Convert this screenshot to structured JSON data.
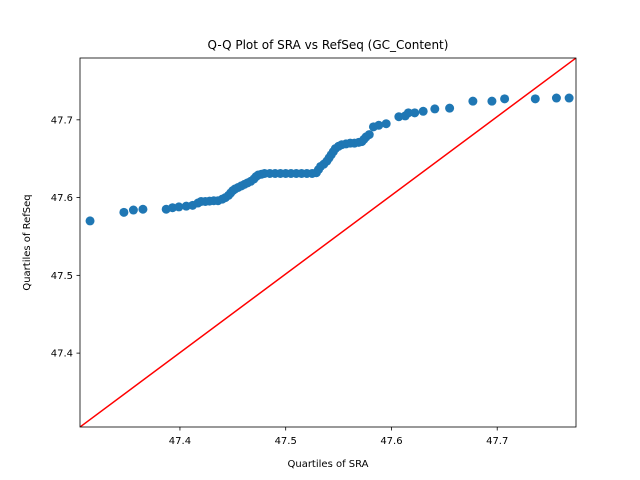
{
  "chart_data": {
    "type": "scatter",
    "title": "Q-Q Plot of SRA vs RefSeq (GC_Content)",
    "xlabel": "Quartiles of SRA",
    "ylabel": "Quartiles of RefSeq",
    "xlim": [
      47.3055,
      47.7745
    ],
    "ylim": [
      47.305,
      47.7795
    ],
    "xticks": [
      47.4,
      47.5,
      47.6,
      47.7
    ],
    "yticks": [
      47.4,
      47.5,
      47.6,
      47.7
    ],
    "xtick_labels": [
      "47.4",
      "47.5",
      "47.6",
      "47.7"
    ],
    "ytick_labels": [
      "47.4",
      "47.5",
      "47.6",
      "47.7"
    ],
    "grid": false,
    "marker_color": "#1f77b4",
    "reference_line": {
      "color": "#ff0000",
      "from": [
        47.3055,
        47.305
      ],
      "to": [
        47.7745,
        47.7795
      ]
    },
    "points": [
      [
        47.315,
        47.57
      ],
      [
        47.347,
        47.581
      ],
      [
        47.356,
        47.584
      ],
      [
        47.365,
        47.585
      ],
      [
        47.387,
        47.585
      ],
      [
        47.393,
        47.587
      ],
      [
        47.399,
        47.588
      ],
      [
        47.406,
        47.589
      ],
      [
        47.412,
        47.59
      ],
      [
        47.417,
        47.593
      ],
      [
        47.42,
        47.595
      ],
      [
        47.424,
        47.595
      ],
      [
        47.428,
        47.5955
      ],
      [
        47.432,
        47.596
      ],
      [
        47.436,
        47.596
      ],
      [
        47.44,
        47.598
      ],
      [
        47.443,
        47.6
      ],
      [
        47.446,
        47.603
      ],
      [
        47.448,
        47.606
      ],
      [
        47.45,
        47.609
      ],
      [
        47.452,
        47.611
      ],
      [
        47.455,
        47.613
      ],
      [
        47.458,
        47.615
      ],
      [
        47.461,
        47.617
      ],
      [
        47.464,
        47.619
      ],
      [
        47.467,
        47.621
      ],
      [
        47.47,
        47.624
      ],
      [
        47.472,
        47.627
      ],
      [
        47.474,
        47.629
      ],
      [
        47.477,
        47.63
      ],
      [
        47.48,
        47.631
      ],
      [
        47.485,
        47.631
      ],
      [
        47.49,
        47.631
      ],
      [
        47.495,
        47.631
      ],
      [
        47.5,
        47.631
      ],
      [
        47.505,
        47.631
      ],
      [
        47.51,
        47.631
      ],
      [
        47.515,
        47.631
      ],
      [
        47.52,
        47.631
      ],
      [
        47.525,
        47.631
      ],
      [
        47.529,
        47.632
      ],
      [
        47.531,
        47.636
      ],
      [
        47.533,
        47.64
      ],
      [
        47.536,
        47.643
      ],
      [
        47.539,
        47.647
      ],
      [
        47.541,
        47.651
      ],
      [
        47.543,
        47.655
      ],
      [
        47.545,
        47.659
      ],
      [
        47.547,
        47.663
      ],
      [
        47.55,
        47.666
      ],
      [
        47.553,
        47.668
      ],
      [
        47.557,
        47.669
      ],
      [
        47.561,
        47.67
      ],
      [
        47.565,
        47.67
      ],
      [
        47.569,
        47.671
      ],
      [
        47.572,
        47.672
      ],
      [
        47.574,
        47.675
      ],
      [
        47.576,
        47.678
      ],
      [
        47.579,
        47.681
      ],
      [
        47.583,
        47.691
      ],
      [
        47.588,
        47.693
      ],
      [
        47.595,
        47.695
      ],
      [
        47.607,
        47.704
      ],
      [
        47.613,
        47.705
      ],
      [
        47.616,
        47.709
      ],
      [
        47.622,
        47.709
      ],
      [
        47.63,
        47.711
      ],
      [
        47.641,
        47.714
      ],
      [
        47.655,
        47.715
      ],
      [
        47.677,
        47.724
      ],
      [
        47.695,
        47.724
      ],
      [
        47.707,
        47.727
      ],
      [
        47.736,
        47.727
      ],
      [
        47.756,
        47.728
      ],
      [
        47.768,
        47.728
      ]
    ]
  }
}
